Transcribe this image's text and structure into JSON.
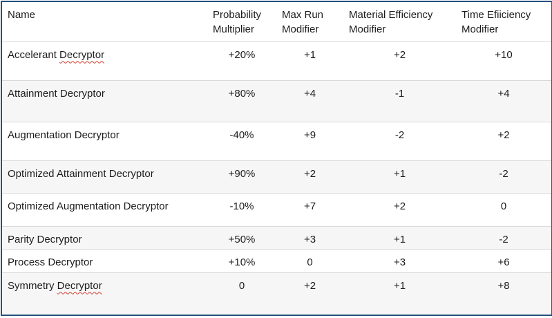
{
  "table": {
    "columns": [
      {
        "label": "Name"
      },
      {
        "label": "Probability Multiplier"
      },
      {
        "label": "Max Run Modifier"
      },
      {
        "label": "Material Efficiency Modifier"
      },
      {
        "label": "Time Efiiciency Modifier"
      }
    ],
    "rows": [
      {
        "name_plain": "Accelerant ",
        "name_misspelled": "Decryptor",
        "probability_multiplier": "+20%",
        "max_run_modifier": "+1",
        "material_efficiency_modifier": "+2",
        "time_efficiency_modifier": "+10"
      },
      {
        "name_plain": "Attainment Decryptor",
        "name_misspelled": "",
        "probability_multiplier": "+80%",
        "max_run_modifier": "+4",
        "material_efficiency_modifier": "-1",
        "time_efficiency_modifier": "+4"
      },
      {
        "name_plain": "Augmentation Decryptor",
        "name_misspelled": "",
        "probability_multiplier": "-40%",
        "max_run_modifier": "+9",
        "material_efficiency_modifier": "-2",
        "time_efficiency_modifier": "+2"
      },
      {
        "name_plain": "Optimized Attainment Decryptor",
        "name_misspelled": "",
        "probability_multiplier": "+90%",
        "max_run_modifier": "+2",
        "material_efficiency_modifier": "+1",
        "time_efficiency_modifier": "-2"
      },
      {
        "name_plain": "Optimized Augmentation Decryptor",
        "name_misspelled": "",
        "probability_multiplier": "-10%",
        "max_run_modifier": "+7",
        "material_efficiency_modifier": "+2",
        "time_efficiency_modifier": "0"
      },
      {
        "name_plain": "Parity Decryptor",
        "name_misspelled": "",
        "probability_multiplier": "+50%",
        "max_run_modifier": "+3",
        "material_efficiency_modifier": "+1",
        "time_efficiency_modifier": "-2"
      },
      {
        "name_plain": "Process Decryptor",
        "name_misspelled": "",
        "probability_multiplier": "+10%",
        "max_run_modifier": "0",
        "material_efficiency_modifier": "+3",
        "time_efficiency_modifier": "+6"
      },
      {
        "name_plain": "Symmetry ",
        "name_misspelled": "Decryptor",
        "probability_multiplier": "0",
        "max_run_modifier": "+2",
        "material_efficiency_modifier": "+1",
        "time_efficiency_modifier": "+8"
      }
    ]
  },
  "colors": {
    "outer_border": "#24527E",
    "row_divider": "#D9D9D9",
    "banded_row_background": "#F6F6F7",
    "spellcheck_underline_red": "#D83B2E"
  }
}
